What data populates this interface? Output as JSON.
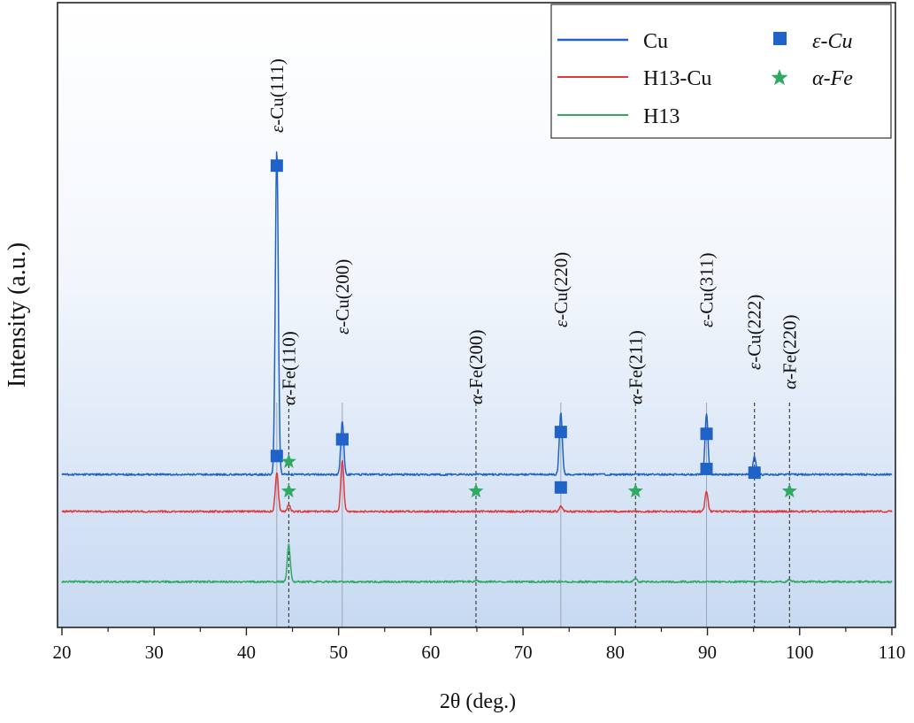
{
  "chart_data": {
    "type": "line",
    "xlabel": "2θ (deg.)",
    "ylabel": "Intensity (a.u.)",
    "xlim": [
      20,
      110
    ],
    "x_ticks": [
      20,
      30,
      40,
      50,
      60,
      70,
      80,
      90,
      100,
      110
    ],
    "x_tick_labels": [
      "20",
      "30",
      "40",
      "50",
      "60",
      "70",
      "80",
      "90",
      "100",
      "110"
    ],
    "y_ticks_shown": false,
    "grid": false,
    "background": "vertical gradient white to light blue",
    "legend_position": "top-right",
    "legend": {
      "lines": [
        {
          "name": "Cu",
          "color": "#1f63c9"
        },
        {
          "name": "H13-Cu",
          "color": "#e03a3a"
        },
        {
          "name": "H13",
          "color": "#2eaa62"
        }
      ],
      "markers": [
        {
          "name": "ε-Cu",
          "symbol": "square",
          "color": "#1f63c9"
        },
        {
          "name": "α-Fe",
          "symbol": "star",
          "color": "#2eaa62"
        }
      ]
    },
    "series": [
      {
        "name": "Cu",
        "color": "#1f63c9",
        "baseline": 100,
        "peaks": [
          {
            "x": 43.3,
            "height": 880
          },
          {
            "x": 50.4,
            "height": 145
          },
          {
            "x": 74.1,
            "height": 165
          },
          {
            "x": 89.9,
            "height": 165
          },
          {
            "x": 95.1,
            "height": 50
          }
        ],
        "markers": [
          {
            "x": 43.3,
            "height": 935,
            "symbol": "square"
          },
          {
            "x": 50.4,
            "height": 195,
            "symbol": "square"
          },
          {
            "x": 74.1,
            "height": 215,
            "symbol": "square"
          },
          {
            "x": 89.9,
            "height": 210,
            "symbol": "square"
          },
          {
            "x": 95.1,
            "height": 105,
            "symbol": "square"
          }
        ]
      },
      {
        "name": "H13-Cu",
        "color": "#e03a3a",
        "baseline": 0,
        "peaks": [
          {
            "x": 43.3,
            "height": 105
          },
          {
            "x": 44.6,
            "height": 18
          },
          {
            "x": 50.4,
            "height": 140
          },
          {
            "x": 74.1,
            "height": 15
          },
          {
            "x": 89.9,
            "height": 55
          }
        ],
        "markers": [
          {
            "x": 43.3,
            "height": 150,
            "symbol": "square"
          },
          {
            "x": 44.6,
            "height": 55,
            "symbol": "star"
          },
          {
            "x": 50.4,
            "height": 195,
            "symbol": "square"
          },
          {
            "x": 74.1,
            "height": 65,
            "symbol": "square"
          },
          {
            "x": 89.9,
            "height": 115,
            "symbol": "square"
          }
        ]
      },
      {
        "name": "H13",
        "color": "#2eaa62",
        "baseline": -190,
        "peaks": [
          {
            "x": 44.6,
            "height": 100
          },
          {
            "x": 64.9,
            "height": 4
          },
          {
            "x": 82.2,
            "height": 10
          },
          {
            "x": 98.9,
            "height": 6
          }
        ],
        "markers": [
          {
            "x": 44.6,
            "height": 135,
            "symbol": "star"
          },
          {
            "x": 64.9,
            "height": 55,
            "symbol": "star"
          },
          {
            "x": 82.2,
            "height": 55,
            "symbol": "star"
          },
          {
            "x": 98.9,
            "height": 55,
            "symbol": "star"
          }
        ]
      }
    ],
    "annotations": [
      {
        "label": "ε-Cu(111)",
        "x": 43.3,
        "dashed": false
      },
      {
        "label": "α-Fe(110)",
        "x": 44.6,
        "dashed": true
      },
      {
        "label": "ε-Cu(200)",
        "x": 50.4,
        "dashed": false
      },
      {
        "label": "α-Fe(200)",
        "x": 64.9,
        "dashed": true
      },
      {
        "label": "ε-Cu(220)",
        "x": 74.1,
        "dashed": false
      },
      {
        "label": "α-Fe(211)",
        "x": 82.2,
        "dashed": true
      },
      {
        "label": "ε-Cu(311)",
        "x": 89.9,
        "dashed": false
      },
      {
        "label": "ε-Cu(222)",
        "x": 95.1,
        "dashed": true
      },
      {
        "label": "α-Fe(220)",
        "x": 98.9,
        "dashed": true
      }
    ]
  }
}
